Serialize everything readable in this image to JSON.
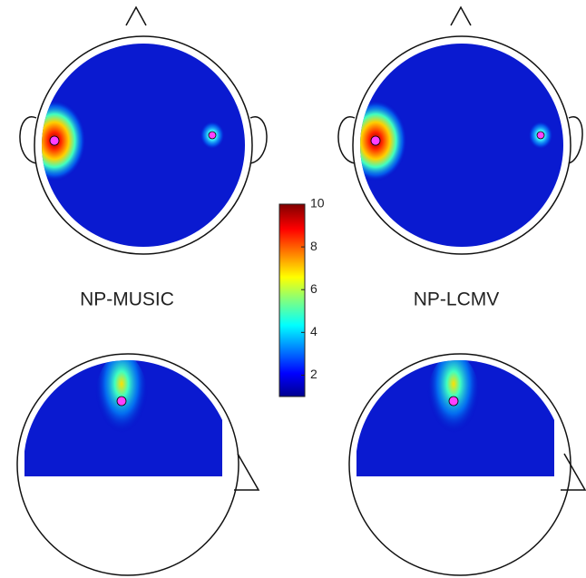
{
  "panels": [
    {
      "label": "NP-MUSIC"
    },
    {
      "label": "NP-LCMV"
    }
  ],
  "colorbar": {
    "lim": [
      1,
      10
    ],
    "ticks": [
      2,
      4,
      6,
      8,
      10
    ]
  }
}
